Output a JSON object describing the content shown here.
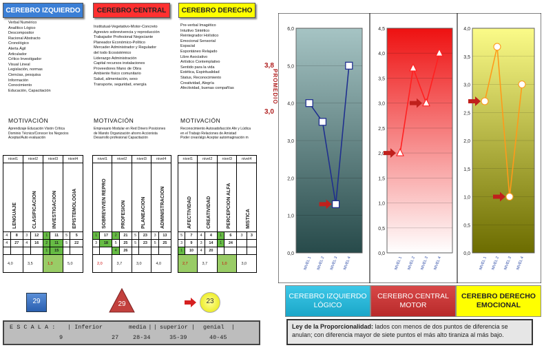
{
  "headers": {
    "left": "CEREBRO IZQUIERDO",
    "center": "CEREBRO CENTRAL",
    "right": "CEREBRO DERECHO"
  },
  "traits": {
    "left": [
      "Verbal Numérico",
      "Analítico Lógico",
      "Descompositor",
      "Racional Abstracto",
      "Cronológico",
      "Alerta Ágil",
      "Articulador",
      "Crítico Investigador",
      "Visual Lineal",
      "Legislación, normas",
      "Ciencias, pesquisa",
      "Información",
      "Conocimiento",
      "Educación, Capacitación"
    ],
    "center": [
      "Institutual-Vegetativo-Motor-Concreto",
      "Agresivo sobrevivencia y reproducción",
      "Trabajador Profesional Negociante",
      "Planeador Económico-Político",
      "Mercader Administrador y Regulador",
      "del todo Ecosistémico",
      "Liderazgo Administración",
      "Capital recursos instalaciones",
      "Proveedores Mano de Obra",
      "Ambiente físico comunitario",
      "Salud, alimentación, sexo",
      "Transporte, seguridad, energía"
    ],
    "right": [
      "Pre-verbal Imagético",
      "Intuitivo Sintético",
      "Reintegrador Holístico",
      "Emocional Sensorial",
      "Espacial",
      "Espontáneo Relajado",
      "Libre Asociativo",
      "Artístico Contemplativo",
      "Sentido para la vida",
      "Estética, Espiritualidad",
      "Status, Reconocimiento",
      "Creatividad, Alegría",
      "Afectividad, buenas compañías"
    ]
  },
  "motivacion": {
    "title": "MOTIVACIÓN",
    "left": [
      "Aprendizaje Educación Visión Crítica",
      "Dominio Técnico/Conocer los Negocios",
      "Aceptar/Auto evaluación"
    ],
    "center": [
      "Empresario Modular en Red Dinero Posiciones",
      "de Mando Organización ahorro Accionista",
      "Desarrollo profesional Capacitación"
    ],
    "right": [
      "Reconocimiento Autosatisfacción Afe y Lúdica",
      "en el Trabajo Relaciones de Amistad",
      "Poder crear/algo Aceptar autoimaginación m"
    ]
  },
  "tables": {
    "nivel_labels": [
      "nivel1",
      "nivel2",
      "nivel3",
      "nivel4"
    ],
    "left": {
      "categories": [
        "LENGUAJE",
        "CLASIFICACION",
        "INVESTIGACION",
        "EPISTEMOLOGIA"
      ],
      "rows": [
        [
          "4",
          "8",
          "3",
          "12",
          "1",
          "11",
          "5",
          "5"
        ],
        [
          "4",
          "27",
          "4",
          "16",
          "2",
          "11",
          "5",
          "22"
        ],
        [
          "",
          "",
          "",
          "",
          "1",
          "15",
          "",
          ""
        ]
      ],
      "scores": [
        "4,0",
        "3,5",
        "1,3",
        "5,0"
      ]
    },
    "center": {
      "categories": [
        "SOBREVIVEN REPRO",
        "PROFESION",
        "PLANEACION",
        "ADMINISTRACION"
      ],
      "rows": [
        [
          "1",
          "17",
          "2",
          "21",
          "5",
          "23",
          "3",
          "13"
        ],
        [
          "3",
          "18",
          "5",
          "25",
          "5",
          "23",
          "5",
          "25"
        ],
        [
          "",
          "",
          "4",
          "26",
          "",
          "",
          "",
          ""
        ]
      ],
      "scores": [
        "2,0",
        "3,7",
        "3,0",
        "4,0"
      ]
    },
    "right": {
      "categories": [
        "AFECTIVIDAD",
        "CREATIVIDAD",
        "PERCEPCION ALFA",
        "MISTICA"
      ],
      "rows": [
        [
          "5",
          "7",
          "4",
          "4",
          "1",
          "6",
          "3",
          "3"
        ],
        [
          "3",
          "9",
          "3",
          "14",
          "1",
          "24",
          "",
          ""
        ],
        [
          "1",
          "10",
          "4",
          "20",
          "",
          "",
          "",
          ""
        ]
      ],
      "scores": [
        "2,7",
        "3,7",
        "1,0",
        "3,0"
      ]
    }
  },
  "totals": {
    "left": "29",
    "center": "29",
    "right": "23"
  },
  "promedio": {
    "label": "PROMEDIO",
    "top": "3,8",
    "bottom": "3,0"
  },
  "escala": {
    "label": "E S C A L A :",
    "cats": [
      "Inferior",
      "media",
      "superior",
      "genial"
    ],
    "vals": [
      "9",
      "27",
      "28-34",
      "35-39",
      "40-45"
    ]
  },
  "buttons": {
    "left": [
      "CEREBRO IZQUIERDO",
      "LÓGICO"
    ],
    "center": [
      "CEREBRO CENTRAL",
      "MOTOR"
    ],
    "right": [
      "CEREBRO DERECHO",
      "EMOCIONAL"
    ]
  },
  "ley": {
    "bold": "Ley de la Proporcionalidad:",
    "text": " lados con menos de dos puntos de diferencia se anulan; con diferencia mayor de siete puntos el más alto tiraniza al más bajo."
  },
  "chart_data": [
    {
      "type": "line",
      "name": "Cerebro Izquierdo Lógico",
      "categories": [
        "NIVEL 1",
        "NIVEL 2",
        "NIVEL 3",
        "NIVEL 4"
      ],
      "values": [
        4.0,
        3.5,
        1.3,
        5.0
      ],
      "ylim": [
        0,
        6
      ],
      "yticks": [
        "0,0",
        "1,0",
        "2,0",
        "3,0",
        "4,0",
        "5,0",
        "6,0"
      ],
      "color": "#1f2f8f",
      "bg": [
        "#a6c4c4",
        "#274a4a"
      ],
      "arrow_at": 1.3
    },
    {
      "type": "line",
      "name": "Cerebro Central Motor",
      "categories": [
        "NIVEL 1",
        "NIVEL 2",
        "NIVEL 3",
        "NIVEL 4"
      ],
      "values": [
        2.0,
        3.7,
        3.0,
        4.0
      ],
      "ylim": [
        0,
        4.5
      ],
      "yticks": [
        "0,0",
        "0,5",
        "1,0",
        "1,5",
        "2,0",
        "2,5",
        "3,0",
        "3,5",
        "4,0",
        "4,5"
      ],
      "color": "#ff2020",
      "bg": [
        "#ee1111",
        "#ffffff"
      ],
      "arrow_at": 2.0,
      "arrow2_at": 3.0
    },
    {
      "type": "line",
      "name": "Cerebro Derecho Emocional",
      "categories": [
        "NIVEL 1",
        "NIVEL 2",
        "NIVEL 3",
        "NIVEL 4"
      ],
      "values": [
        2.7,
        3.67,
        1.0,
        3.0
      ],
      "ylim": [
        0,
        4.0
      ],
      "yticks": [
        "0,0",
        "0,5",
        "1,0",
        "1,5",
        "2,0",
        "2,5",
        "3,0",
        "3,5",
        "4,0"
      ],
      "color": "#ff9a1a",
      "bg": [
        "#fbfb88",
        "#6c6c00"
      ],
      "arrow_at": 2.7,
      "arrow2_at": 1.0
    }
  ]
}
